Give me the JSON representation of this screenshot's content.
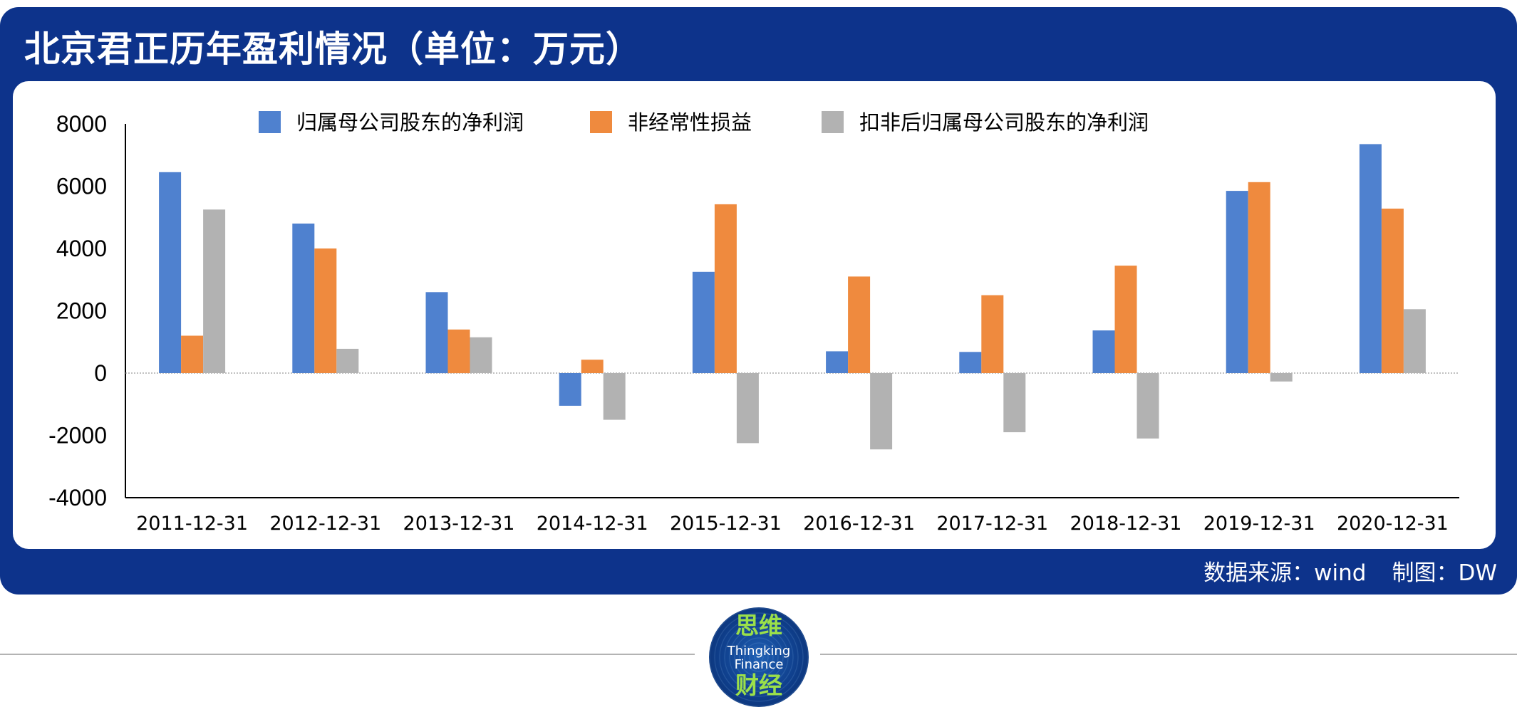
{
  "title": "北京君正历年盈利情况（单位：万元）",
  "footer": {
    "source": "数据来源：wind",
    "author": "制图：DW"
  },
  "logo": {
    "cn_top": "思维",
    "en_line1": "Thingking",
    "en_line2": "Finance",
    "cn_bottom": "财经"
  },
  "colors": {
    "panel": "#0d338b",
    "series1": "#4f81cf",
    "series2": "#ef8a3e",
    "series3": "#b2b2b2"
  },
  "chart_data": {
    "type": "bar",
    "title": "北京君正历年盈利情况（单位：万元）",
    "xlabel": "",
    "ylabel": "",
    "ylim": [
      -4000,
      8000
    ],
    "yticks": [
      8000,
      6000,
      4000,
      2000,
      0,
      -2000,
      -4000
    ],
    "legend_position": "top",
    "categories": [
      "2011-12-31",
      "2012-12-31",
      "2013-12-31",
      "2014-12-31",
      "2015-12-31",
      "2016-12-31",
      "2017-12-31",
      "2018-12-31",
      "2019-12-31",
      "2020-12-31"
    ],
    "series": [
      {
        "name": "归属母公司股东的净利润",
        "color": "#4f81cf",
        "values": [
          6450,
          4800,
          2600,
          -1050,
          3250,
          700,
          680,
          1370,
          5850,
          7350
        ]
      },
      {
        "name": "非经常性损益",
        "color": "#ef8a3e",
        "values": [
          1200,
          4000,
          1400,
          430,
          5420,
          3100,
          2500,
          3450,
          6130,
          5280
        ]
      },
      {
        "name": "扣非后归属母公司股东的净利润",
        "color": "#b2b2b2",
        "values": [
          5250,
          780,
          1150,
          -1500,
          -2250,
          -2450,
          -1900,
          -2100,
          -270,
          2050
        ]
      }
    ]
  }
}
